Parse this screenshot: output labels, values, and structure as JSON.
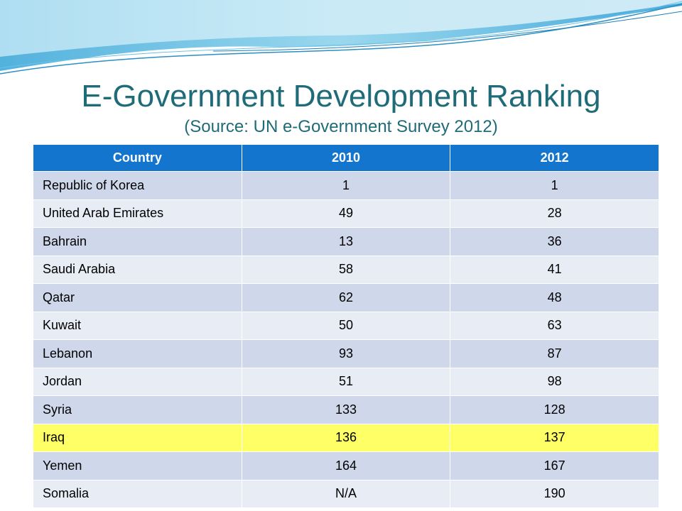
{
  "slide": {
    "title": "E-Government Development Ranking",
    "subtitle": "(Source: UN e-Government Survey 2012)"
  },
  "table": {
    "headers": [
      "Country",
      "2010",
      "2012"
    ],
    "rows": [
      {
        "country": "Republic of Korea",
        "y2010": "1",
        "y2012": "1"
      },
      {
        "country": "United Arab Emirates",
        "y2010": "49",
        "y2012": "28"
      },
      {
        "country": "Bahrain",
        "y2010": "13",
        "y2012": "36"
      },
      {
        "country": "Saudi Arabia",
        "y2010": "58",
        "y2012": "41"
      },
      {
        "country": "Qatar",
        "y2010": "62",
        "y2012": "48"
      },
      {
        "country": "Kuwait",
        "y2010": "50",
        "y2012": "63"
      },
      {
        "country": "Lebanon",
        "y2010": "93",
        "y2012": "87"
      },
      {
        "country": "Jordan",
        "y2010": "51",
        "y2012": "98"
      },
      {
        "country": "Syria",
        "y2010": "133",
        "y2012": "128"
      },
      {
        "country": "Iraq",
        "y2010": "136",
        "y2012": "137",
        "highlighted": true
      },
      {
        "country": "Yemen",
        "y2010": "164",
        "y2012": "167"
      },
      {
        "country": "Somalia",
        "y2010": "N/A",
        "y2012": "190"
      }
    ]
  },
  "colors": {
    "header": "#1475cf",
    "title": "#1f6b78",
    "row_dark": "#cfd7eb",
    "row_light": "#e8ecf5",
    "highlight": "#ffff66"
  }
}
